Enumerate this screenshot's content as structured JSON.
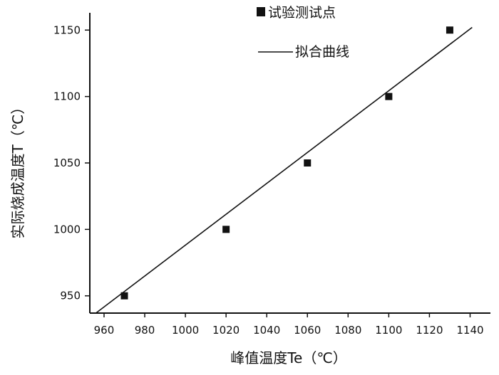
{
  "chart_data": {
    "type": "scatter",
    "xlabel": "峰值温度Te（℃）",
    "ylabel": "实际烧成温度T（℃）",
    "x_ticks": [
      960,
      980,
      1000,
      1020,
      1040,
      1060,
      1080,
      1100,
      1120,
      1140
    ],
    "y_ticks": [
      950,
      1000,
      1050,
      1100,
      1150
    ],
    "xlim": [
      953,
      1150
    ],
    "ylim": [
      937,
      1163
    ],
    "grid": false,
    "legend_position": "top-right",
    "series": [
      {
        "name": "试验测试点",
        "type": "scatter",
        "marker": "square",
        "color": "#111111",
        "x": [
          970,
          1020,
          1060,
          1100,
          1130
        ],
        "y": [
          950,
          1000,
          1050,
          1100,
          1150
        ]
      },
      {
        "name": "拟合曲线",
        "type": "line",
        "color": "#111111",
        "x": [
          956,
          1141
        ],
        "y": [
          937,
          1152
        ]
      }
    ]
  }
}
